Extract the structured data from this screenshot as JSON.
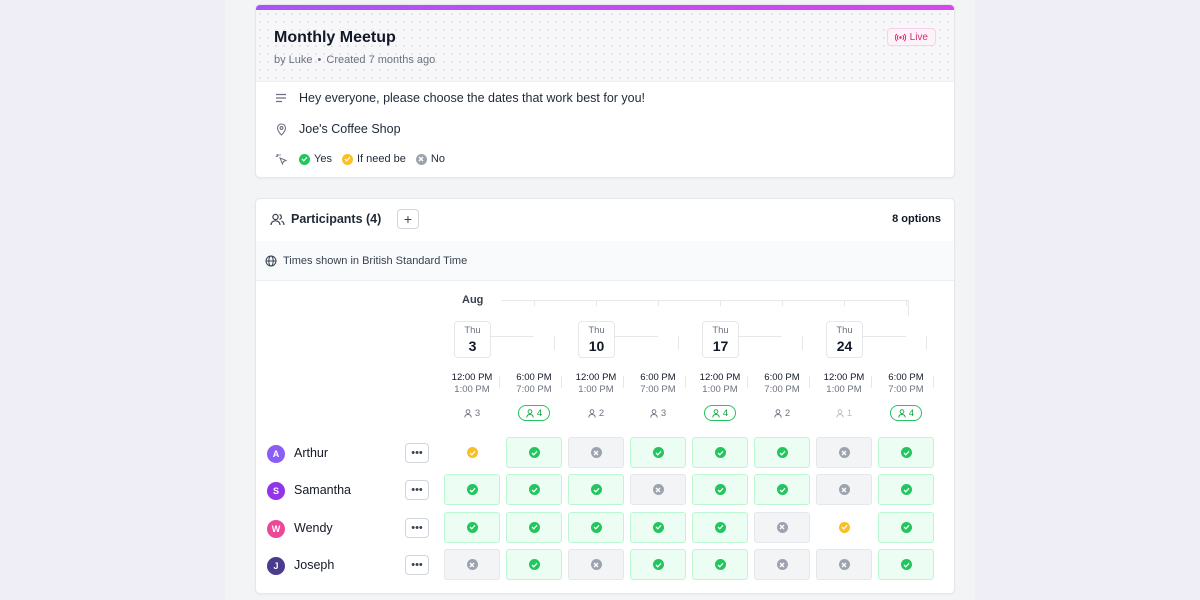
{
  "event": {
    "title": "Monthly Meetup",
    "by": "by Luke",
    "created": "Created 7 months ago",
    "badge": "Live",
    "description": "Hey everyone, please choose the dates that work best for you!",
    "location": "Joe's Coffee Shop",
    "legend": {
      "yes": "Yes",
      "ifneedbe": "If need be",
      "no": "No"
    }
  },
  "participants": {
    "title": "Participants (4)",
    "add_label": "+",
    "options_count": "8 options",
    "timezone": "Times shown in British Standard Time",
    "month": "Aug",
    "dates": [
      {
        "dow": "Thu",
        "day": "3"
      },
      {
        "dow": "Thu",
        "day": "10"
      },
      {
        "dow": "Thu",
        "day": "17"
      },
      {
        "dow": "Thu",
        "day": "24"
      }
    ],
    "options": [
      {
        "start": "12:00 PM",
        "end": "1:00 PM",
        "count": "3",
        "best": false,
        "low": false
      },
      {
        "start": "6:00 PM",
        "end": "7:00 PM",
        "count": "4",
        "best": true,
        "low": false
      },
      {
        "start": "12:00 PM",
        "end": "1:00 PM",
        "count": "2",
        "best": false,
        "low": false
      },
      {
        "start": "6:00 PM",
        "end": "7:00 PM",
        "count": "3",
        "best": false,
        "low": false
      },
      {
        "start": "12:00 PM",
        "end": "1:00 PM",
        "count": "4",
        "best": true,
        "low": false
      },
      {
        "start": "6:00 PM",
        "end": "7:00 PM",
        "count": "2",
        "best": false,
        "low": false
      },
      {
        "start": "12:00 PM",
        "end": "1:00 PM",
        "count": "1",
        "best": false,
        "low": true
      },
      {
        "start": "6:00 PM",
        "end": "7:00 PM",
        "count": "4",
        "best": true,
        "low": false
      }
    ],
    "people": [
      {
        "initial": "A",
        "name": "Arthur",
        "color": "#8b5cf6",
        "more": "•••",
        "votes": [
          "ifneedbe",
          "yes",
          "no",
          "yes",
          "yes",
          "yes",
          "no",
          "yes"
        ]
      },
      {
        "initial": "S",
        "name": "Samantha",
        "color": "#9333ea",
        "more": "•••",
        "votes": [
          "yes",
          "yes",
          "yes",
          "no",
          "yes",
          "yes",
          "no",
          "yes"
        ]
      },
      {
        "initial": "W",
        "name": "Wendy",
        "color": "#ec4899",
        "more": "•••",
        "votes": [
          "yes",
          "yes",
          "yes",
          "yes",
          "yes",
          "no",
          "ifneedbe",
          "yes"
        ]
      },
      {
        "initial": "J",
        "name": "Joseph",
        "color": "#4c3a8c",
        "more": "•••",
        "votes": [
          "no",
          "yes",
          "no",
          "yes",
          "yes",
          "no",
          "no",
          "yes"
        ]
      }
    ]
  },
  "colors": {
    "yes": "#22c55e",
    "ifneedbe": "#fbbf24",
    "no": "#9ca3af",
    "accent": "#c026d3"
  }
}
